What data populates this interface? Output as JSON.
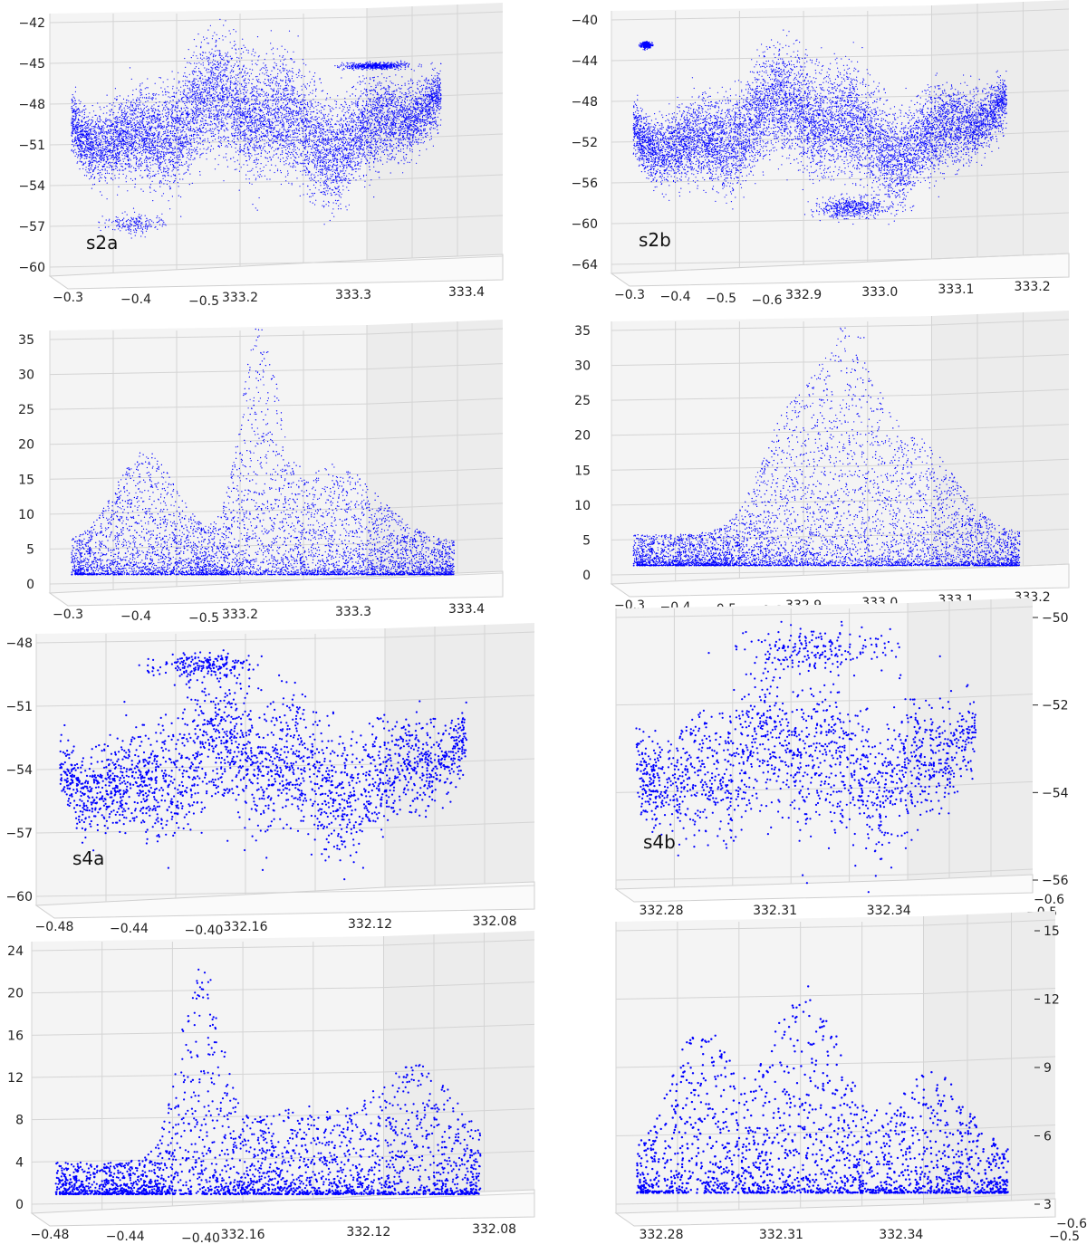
{
  "figure_colors": {
    "points": "#0000ff",
    "grid": "#d4d4d4",
    "pane": "#f4f4f4"
  },
  "chart_data": [
    {
      "id": "p1",
      "type": "scatter",
      "label": "s2a",
      "y_ticks": [
        "−42",
        "−45",
        "−48",
        "−51",
        "−54",
        "−57",
        "−60"
      ],
      "x_ticks_a": [
        "−0.3",
        "−0.4",
        "−0.5"
      ],
      "x_ticks_b": [
        "333.2",
        "333.3",
        "333.4"
      ],
      "zlim": [
        -60,
        -41
      ],
      "x": [
        333.15,
        333.45
      ],
      "series": [
        {
          "values_desc": "dense blue point cloud, center band near -49 to -50"
        }
      ]
    },
    {
      "id": "p2",
      "type": "scatter",
      "label": "s2b",
      "y_ticks": [
        "−40",
        "−44",
        "−48",
        "−52",
        "−56",
        "−60",
        "−64"
      ],
      "x_ticks_a": [
        "−0.3",
        "−0.4",
        "−0.5",
        "−0.6"
      ],
      "x_ticks_b": [
        "332.9",
        "333.0",
        "333.1",
        "333.2"
      ],
      "zlim": [
        -64,
        -40
      ]
    },
    {
      "id": "p3",
      "type": "scatter",
      "label": "",
      "y_ticks": [
        "35",
        "30",
        "25",
        "20",
        "15",
        "10",
        "5",
        "0"
      ],
      "x_ticks_a": [
        "−0.3",
        "−0.4",
        "−0.5"
      ],
      "x_ticks_b": [
        "333.2",
        "333.3",
        "333.4"
      ],
      "zlim": [
        0,
        35
      ]
    },
    {
      "id": "p4",
      "type": "scatter",
      "label": "",
      "y_ticks": [
        "35",
        "30",
        "25",
        "20",
        "15",
        "10",
        "5",
        "0"
      ],
      "x_ticks_a": [
        "−0.3",
        "−0.4",
        "−0.5",
        "−0.6"
      ],
      "x_ticks_b": [
        "332.9",
        "333.0",
        "333.1",
        "333.2"
      ],
      "zlim": [
        0,
        35
      ]
    },
    {
      "id": "p5",
      "type": "scatter",
      "label": "s4a",
      "y_ticks": [
        "−48",
        "−51",
        "−54",
        "−57",
        "−60"
      ],
      "x_ticks_a": [
        "−0.48",
        "−0.44",
        "−0.40"
      ],
      "x_ticks_b": [
        "332.16",
        "332.12",
        "332.08"
      ],
      "zlim": [
        -61,
        -47
      ]
    },
    {
      "id": "p6",
      "type": "scatter",
      "label": "s4b",
      "y_ticks": [
        "−50",
        "−52",
        "−54",
        "−56"
      ],
      "x_ticks_a": [
        "332.28",
        "332.31",
        "332.34"
      ],
      "x_ticks_b": [
        "−0.5",
        "−0.6"
      ],
      "zlim": [
        -56,
        -50
      ]
    },
    {
      "id": "p7",
      "type": "scatter",
      "label": "",
      "y_ticks": [
        "24",
        "20",
        "16",
        "12",
        "8",
        "4",
        "0"
      ],
      "x_ticks_a": [
        "−0.48",
        "−0.44",
        "−0.40"
      ],
      "x_ticks_b": [
        "332.16",
        "332.12",
        "332.08"
      ],
      "zlim": [
        0,
        24
      ]
    },
    {
      "id": "p8",
      "type": "scatter",
      "label": "",
      "y_ticks": [
        "15",
        "12",
        "9",
        "6",
        "3"
      ],
      "x_ticks_a": [
        "332.28",
        "332.31",
        "332.34"
      ],
      "x_ticks_b": [
        "−0.5",
        "−0.6"
      ],
      "zlim": [
        0,
        17
      ]
    }
  ]
}
